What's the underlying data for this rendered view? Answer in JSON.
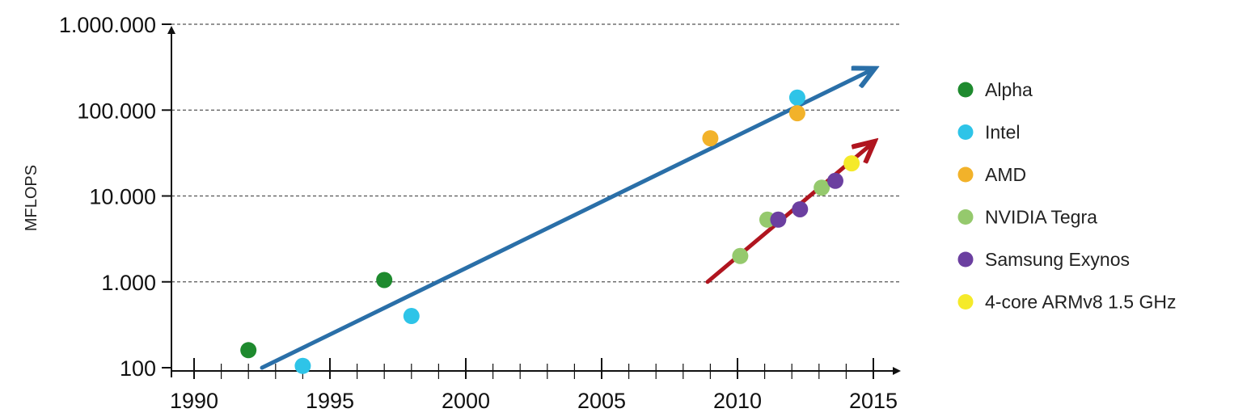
{
  "chart_data": {
    "type": "scatter",
    "title": "",
    "xlabel": "",
    "ylabel": "MFLOPS",
    "y_scale": "log",
    "xlim": [
      1989,
      2015.5
    ],
    "ylim": [
      100,
      1000000
    ],
    "x_ticks": [
      1990,
      1995,
      2000,
      2005,
      2010,
      2015
    ],
    "x_tick_labels": [
      "1990",
      "1995",
      "2000",
      "2005",
      "2010",
      "2015"
    ],
    "y_ticks": [
      100,
      1000,
      10000,
      100000,
      1000000
    ],
    "y_tick_labels": [
      "100",
      "1.000",
      "10.000",
      "100.000",
      "1.000.000"
    ],
    "grid": "horizontal-dashed",
    "legend_position": "right",
    "series": [
      {
        "name": "Alpha",
        "color": "#1e8a2e",
        "points": [
          [
            1992,
            160
          ],
          [
            1997,
            1050
          ]
        ]
      },
      {
        "name": "Intel",
        "color": "#2ec4e8",
        "points": [
          [
            1994,
            105
          ],
          [
            1998,
            400
          ],
          [
            2012.2,
            140000
          ]
        ]
      },
      {
        "name": "AMD",
        "color": "#f2b22a",
        "points": [
          [
            2009,
            47000
          ],
          [
            2012.2,
            92000
          ]
        ]
      },
      {
        "name": "NVIDIA Tegra",
        "color": "#95c96d",
        "points": [
          [
            2010.1,
            2000
          ],
          [
            2011.1,
            5300
          ],
          [
            2013.1,
            12500
          ]
        ]
      },
      {
        "name": "Samsung Exynos",
        "color": "#6b3fa0",
        "points": [
          [
            2011.5,
            5300
          ],
          [
            2012.3,
            7000
          ],
          [
            2013.6,
            15000
          ]
        ]
      },
      {
        "name": "4-core ARMv8 1.5 GHz",
        "color": "#f5ea2a",
        "points": [
          [
            2014.2,
            24000
          ]
        ]
      }
    ],
    "trend_lines": [
      {
        "color": "#2a6fa8",
        "from": [
          1992.5,
          100
        ],
        "to": [
          2015,
          300000
        ]
      },
      {
        "color": "#b0151f",
        "from": [
          2008.9,
          1000
        ],
        "to": [
          2015,
          42000
        ]
      }
    ]
  }
}
